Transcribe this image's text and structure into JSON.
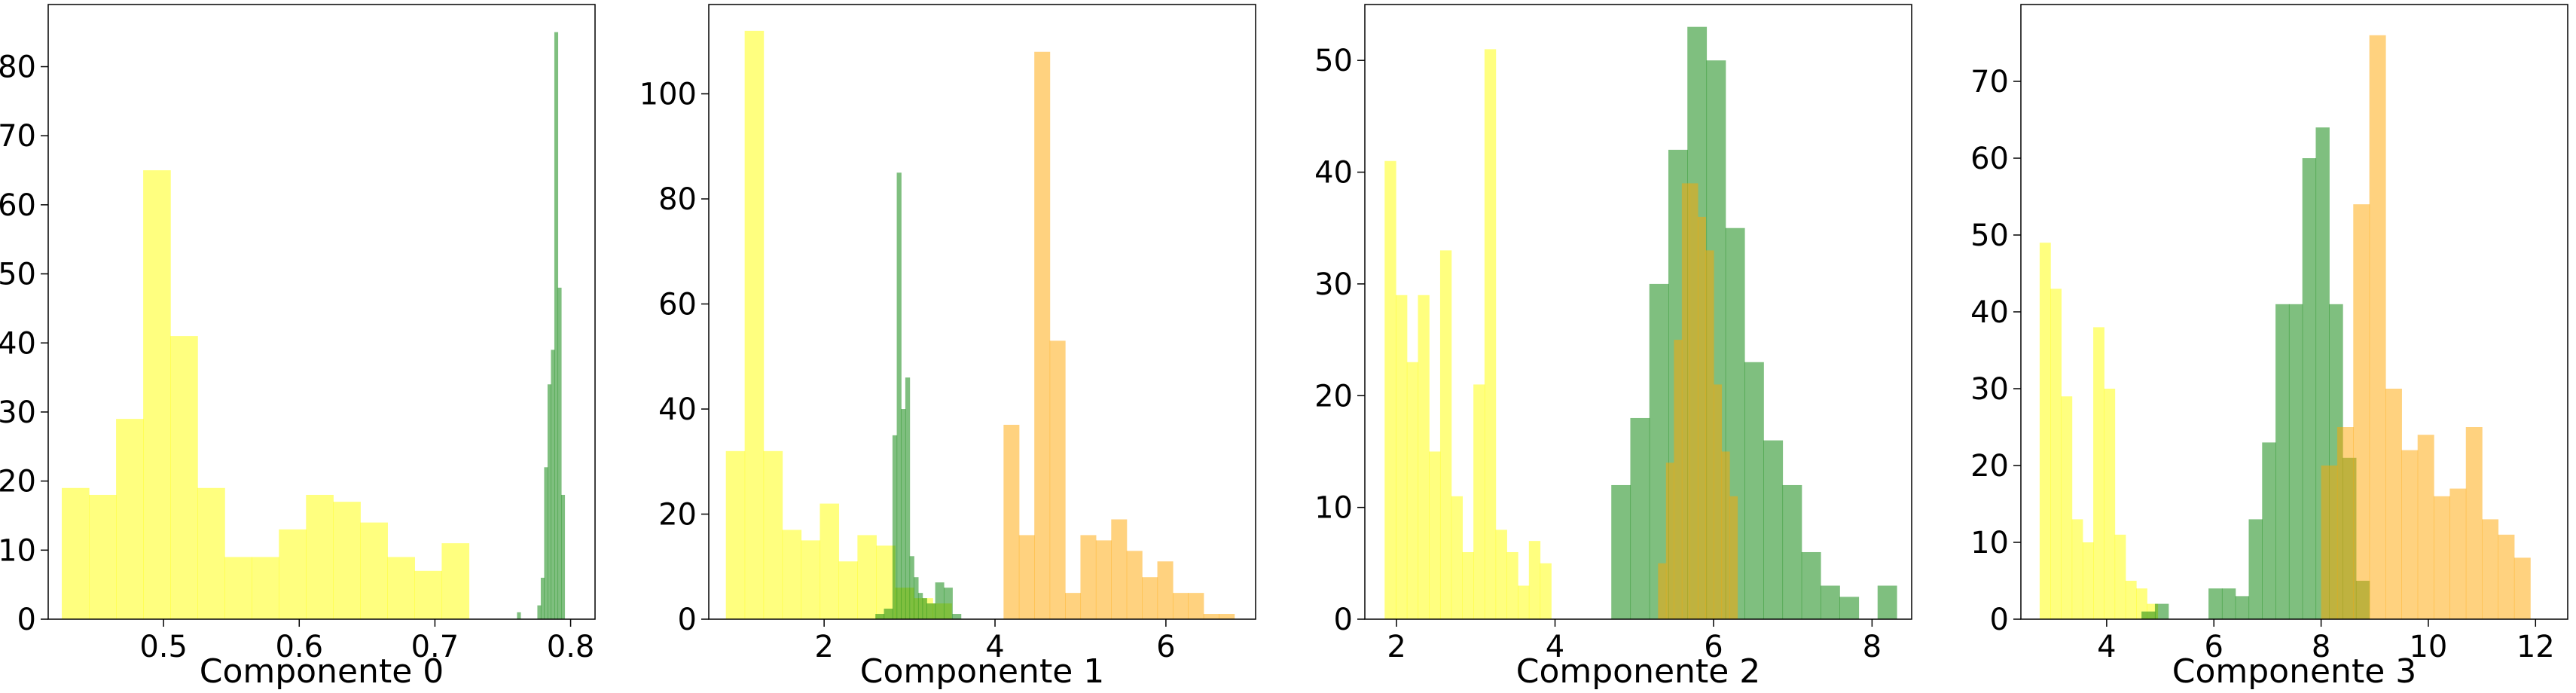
{
  "chart_data": [
    {
      "type": "histogram",
      "xlabel": "Componente 0",
      "xlim": [
        0.415,
        0.818
      ],
      "ylim": [
        0,
        89
      ],
      "xticks": [
        0.5,
        0.6,
        0.7,
        0.8
      ],
      "xtick_labels": [
        "0.5",
        "0.6",
        "0.7",
        "0.8"
      ],
      "yticks": [
        0,
        10,
        20,
        30,
        40,
        50,
        60,
        70,
        80
      ],
      "series": [
        {
          "color": "#ffff00",
          "edges": [
            0.425,
            0.445,
            0.465,
            0.485,
            0.505,
            0.525,
            0.545,
            0.565,
            0.585,
            0.605,
            0.625,
            0.645,
            0.665,
            0.685,
            0.705,
            0.725,
            0.745,
            0.765
          ],
          "counts": [
            19,
            18,
            29,
            65,
            41,
            19,
            9,
            9,
            13,
            18,
            17,
            14,
            9,
            7,
            11,
            0,
            0
          ]
        },
        {
          "color": "#008000",
          "edges": [
            0.7605,
            0.763,
            0.7655,
            0.768,
            0.7705,
            0.773,
            0.7755,
            0.778,
            0.7805,
            0.783,
            0.7855,
            0.788,
            0.7905,
            0.793,
            0.7955,
            0.798
          ],
          "counts": [
            1,
            0,
            0,
            0,
            0,
            0,
            2,
            6,
            22,
            34,
            39,
            85,
            48,
            18,
            0
          ]
        }
      ]
    },
    {
      "type": "histogram",
      "xlabel": "Componente 1",
      "xlim": [
        0.65,
        7.05
      ],
      "ylim": [
        0,
        117
      ],
      "xticks": [
        2,
        4,
        6
      ],
      "xtick_labels": [
        "2",
        "4",
        "6"
      ],
      "yticks": [
        0,
        20,
        40,
        60,
        80,
        100
      ],
      "series": [
        {
          "color": "#ffff00",
          "edges": [
            0.85,
            1.07,
            1.29,
            1.51,
            1.73,
            1.95,
            2.17,
            2.39,
            2.61,
            2.83,
            3.05,
            3.27,
            3.49
          ],
          "counts": [
            32,
            112,
            32,
            17,
            15,
            22,
            11,
            16,
            14,
            6,
            4,
            3
          ]
        },
        {
          "color": "#008000",
          "edges": [
            2.6,
            2.7,
            2.8,
            2.85,
            2.9,
            2.95,
            3.0,
            3.05,
            3.1,
            3.15,
            3.2,
            3.3,
            3.4,
            3.5,
            3.6
          ],
          "counts": [
            1,
            2,
            35,
            85,
            40,
            46,
            12,
            8,
            5,
            4,
            3,
            7,
            6,
            1
          ]
        },
        {
          "color": "#ffa500",
          "edges": [
            4.1,
            4.28,
            4.46,
            4.64,
            4.82,
            5.0,
            5.18,
            5.36,
            5.54,
            5.72,
            5.9,
            6.08,
            6.26,
            6.44,
            6.62,
            6.8
          ],
          "counts": [
            37,
            16,
            108,
            53,
            5,
            16,
            15,
            19,
            13,
            8,
            11,
            5,
            5,
            1,
            1
          ]
        }
      ]
    },
    {
      "type": "histogram",
      "xlabel": "Componente 2",
      "xlim": [
        1.6,
        8.5
      ],
      "ylim": [
        0,
        55
      ],
      "xticks": [
        2,
        4,
        6,
        8
      ],
      "xtick_labels": [
        "2",
        "4",
        "6",
        "8"
      ],
      "yticks": [
        0,
        10,
        20,
        30,
        40,
        50
      ],
      "series": [
        {
          "color": "#ffff00",
          "edges": [
            1.85,
            1.99,
            2.13,
            2.27,
            2.41,
            2.55,
            2.69,
            2.83,
            2.97,
            3.11,
            3.25,
            3.39,
            3.53,
            3.67,
            3.81,
            3.95,
            4.09
          ],
          "counts": [
            41,
            29,
            23,
            29,
            15,
            33,
            11,
            6,
            21,
            51,
            8,
            6,
            3,
            7,
            5,
            0
          ]
        },
        {
          "color": "#008000",
          "edges": [
            4.71,
            4.95,
            5.19,
            5.43,
            5.67,
            5.91,
            6.15,
            6.39,
            6.63,
            6.87,
            7.11,
            7.35,
            7.59,
            7.83,
            8.07,
            8.31
          ],
          "counts": [
            12,
            18,
            30,
            42,
            53,
            50,
            35,
            23,
            16,
            12,
            6,
            3,
            2,
            0,
            3
          ]
        },
        {
          "color": "#ffa500",
          "edges": [
            5.3,
            5.4,
            5.5,
            5.6,
            5.7,
            5.8,
            5.9,
            6.0,
            6.1,
            6.2,
            6.3
          ],
          "counts": [
            5,
            14,
            25,
            39,
            39,
            36,
            33,
            21,
            15,
            11
          ]
        }
      ]
    },
    {
      "type": "histogram",
      "xlabel": "Componente 3",
      "xlim": [
        2.4,
        12.6
      ],
      "ylim": [
        0,
        80
      ],
      "xticks": [
        4,
        6,
        8,
        10,
        12
      ],
      "xtick_labels": [
        "4",
        "6",
        "8",
        "10",
        "12"
      ],
      "yticks": [
        0,
        10,
        20,
        30,
        40,
        50,
        60,
        70
      ],
      "series": [
        {
          "color": "#ffff00",
          "edges": [
            2.75,
            2.95,
            3.15,
            3.35,
            3.55,
            3.75,
            3.95,
            4.15,
            4.35,
            4.55,
            4.75,
            4.95
          ],
          "counts": [
            49,
            43,
            29,
            13,
            10,
            38,
            30,
            11,
            5,
            4,
            2
          ]
        },
        {
          "color": "#008000",
          "edges": [
            4.65,
            4.9,
            5.15,
            5.4,
            5.65,
            5.9,
            6.15,
            6.4,
            6.65,
            6.9,
            7.15,
            7.4,
            7.65,
            7.9,
            8.15,
            8.4,
            8.65,
            8.9
          ],
          "counts": [
            1,
            2,
            0,
            0,
            0,
            4,
            4,
            3,
            13,
            23,
            41,
            41,
            60,
            64,
            41,
            21,
            5
          ]
        },
        {
          "color": "#ffa500",
          "edges": [
            8.0,
            8.3,
            8.6,
            8.9,
            9.2,
            9.5,
            9.8,
            10.1,
            10.4,
            10.7,
            11.0,
            11.3,
            11.6,
            11.9,
            12.2
          ],
          "counts": [
            20,
            25,
            54,
            76,
            30,
            22,
            24,
            16,
            17,
            25,
            13,
            11,
            8,
            0
          ]
        }
      ]
    }
  ]
}
